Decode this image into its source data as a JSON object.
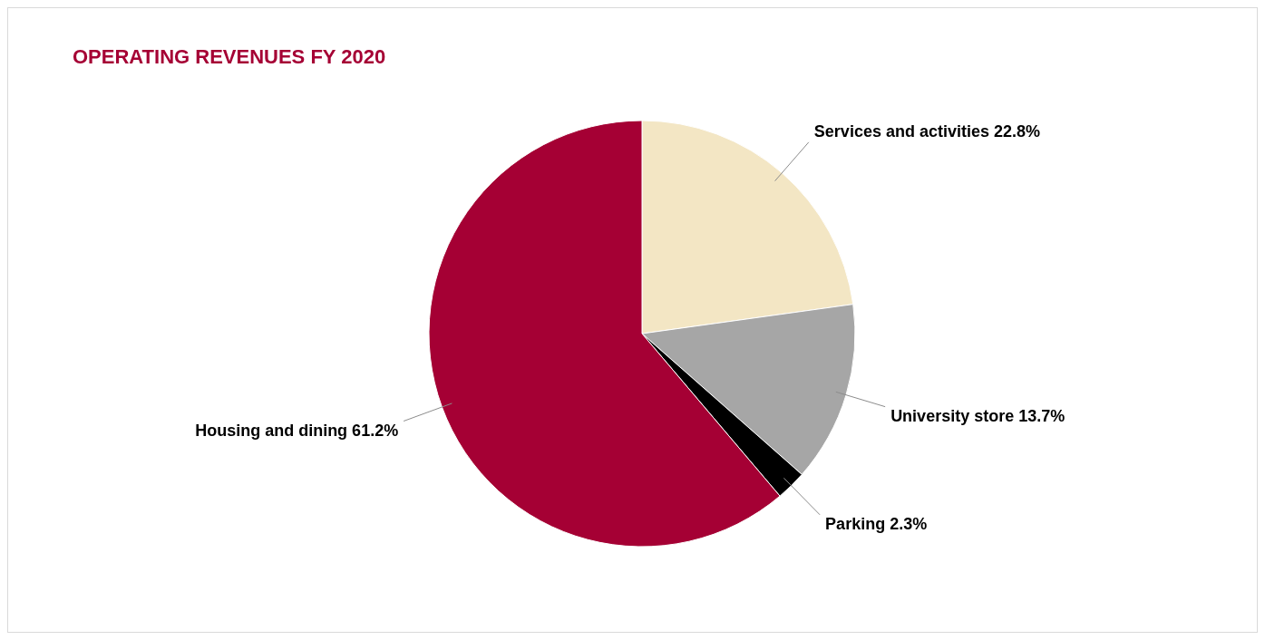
{
  "chart_data": {
    "type": "pie",
    "title": "OPERATING REVENUES FY 2020",
    "categories": [
      "Services and activities",
      "University store",
      "Parking",
      "Housing and dining"
    ],
    "values": [
      22.8,
      13.7,
      2.3,
      61.2
    ],
    "value_labels": [
      "22.8%",
      "13.7%",
      "2.3%",
      "61.2%"
    ],
    "colors": [
      "#f3e6c4",
      "#a6a6a6",
      "#000000",
      "#a50034"
    ]
  }
}
